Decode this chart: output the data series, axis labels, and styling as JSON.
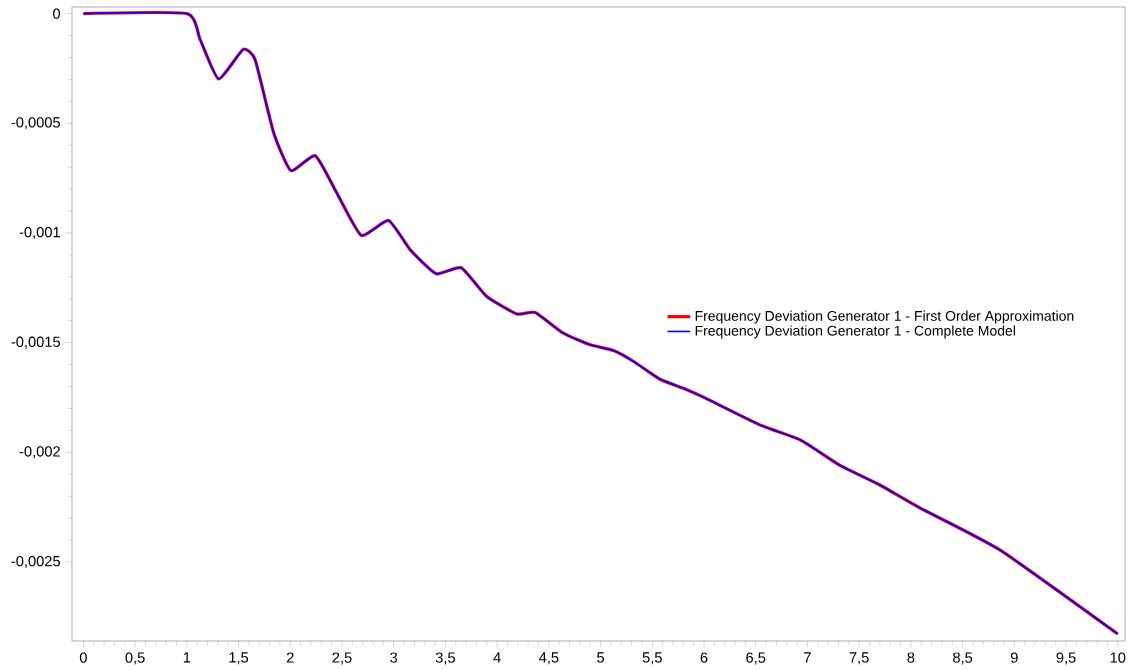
{
  "chart_data": {
    "type": "line",
    "x": [
      0,
      1.0,
      1.13,
      1.307,
      1.543,
      1.66,
      1.84,
      2.007,
      2.242,
      2.45,
      2.686,
      2.95,
      3.16,
      3.41,
      3.652,
      3.9,
      4.19,
      4.367,
      4.64,
      4.9,
      5.125,
      5.32,
      5.575,
      5.8,
      6.01,
      6.54,
      6.93,
      7.31,
      7.7,
      8.09,
      8.86,
      10
    ],
    "series": [
      {
        "name": "Frequency Deviation Generator 1 - First Order Approximation",
        "color": "#ff0000",
        "values": [
          0,
          0,
          -0.00012,
          -0.000298,
          -0.000164,
          -0.00021,
          -0.000544,
          -0.000716,
          -0.000648,
          -0.000818,
          -0.001011,
          -0.000943,
          -0.001077,
          -0.001186,
          -0.001159,
          -0.00129,
          -0.001369,
          -0.001363,
          -0.001457,
          -0.00151,
          -0.001536,
          -0.001586,
          -0.001667,
          -0.001708,
          -0.001752,
          -0.001875,
          -0.001943,
          -0.002058,
          -0.002149,
          -0.002254,
          -0.002445,
          -0.002828
        ]
      },
      {
        "name": "Frequency Deviation Generator 1 - Complete Model",
        "color": "#0000ff",
        "values": [
          0,
          0,
          -0.00012,
          -0.000298,
          -0.000164,
          -0.00021,
          -0.000544,
          -0.000716,
          -0.000648,
          -0.000818,
          -0.001011,
          -0.000943,
          -0.001077,
          -0.001186,
          -0.001159,
          -0.00129,
          -0.001369,
          -0.001363,
          -0.001457,
          -0.00151,
          -0.001536,
          -0.001586,
          -0.001667,
          -0.001708,
          -0.001752,
          -0.001875,
          -0.001943,
          -0.002058,
          -0.002149,
          -0.002254,
          -0.002445,
          -0.002828
        ]
      }
    ],
    "xlim": [
      -0.11,
      10.07
    ],
    "ylim": [
      -0.00286,
      3e-05
    ],
    "xticks": [
      0,
      {
        "value": 0.5,
        "label": "0,5"
      },
      1,
      {
        "value": 1.5,
        "label": "1,5"
      },
      2,
      {
        "value": 2.5,
        "label": "2,5"
      },
      3,
      {
        "value": 3.5,
        "label": "3,5"
      },
      4,
      {
        "value": 4.5,
        "label": "4,5"
      },
      5,
      {
        "value": 5.5,
        "label": "5,5"
      },
      6,
      {
        "value": 6.5,
        "label": "6,5"
      },
      7,
      {
        "value": 7.5,
        "label": "7,5"
      },
      8,
      {
        "value": 8.5,
        "label": "8,5"
      },
      9,
      {
        "value": 9.5,
        "label": "9,5"
      },
      10
    ],
    "yticks": [
      0,
      {
        "value": -0.0005,
        "label": "-0,0005"
      },
      {
        "value": -0.001,
        "label": "-0,001"
      },
      {
        "value": -0.0015,
        "label": "-0,0015"
      },
      {
        "value": -0.002,
        "label": "-0,002"
      },
      {
        "value": -0.0025,
        "label": "-0,0025"
      }
    ],
    "grid": false,
    "legend": "right",
    "marker": "none",
    "line_style": "solid"
  }
}
